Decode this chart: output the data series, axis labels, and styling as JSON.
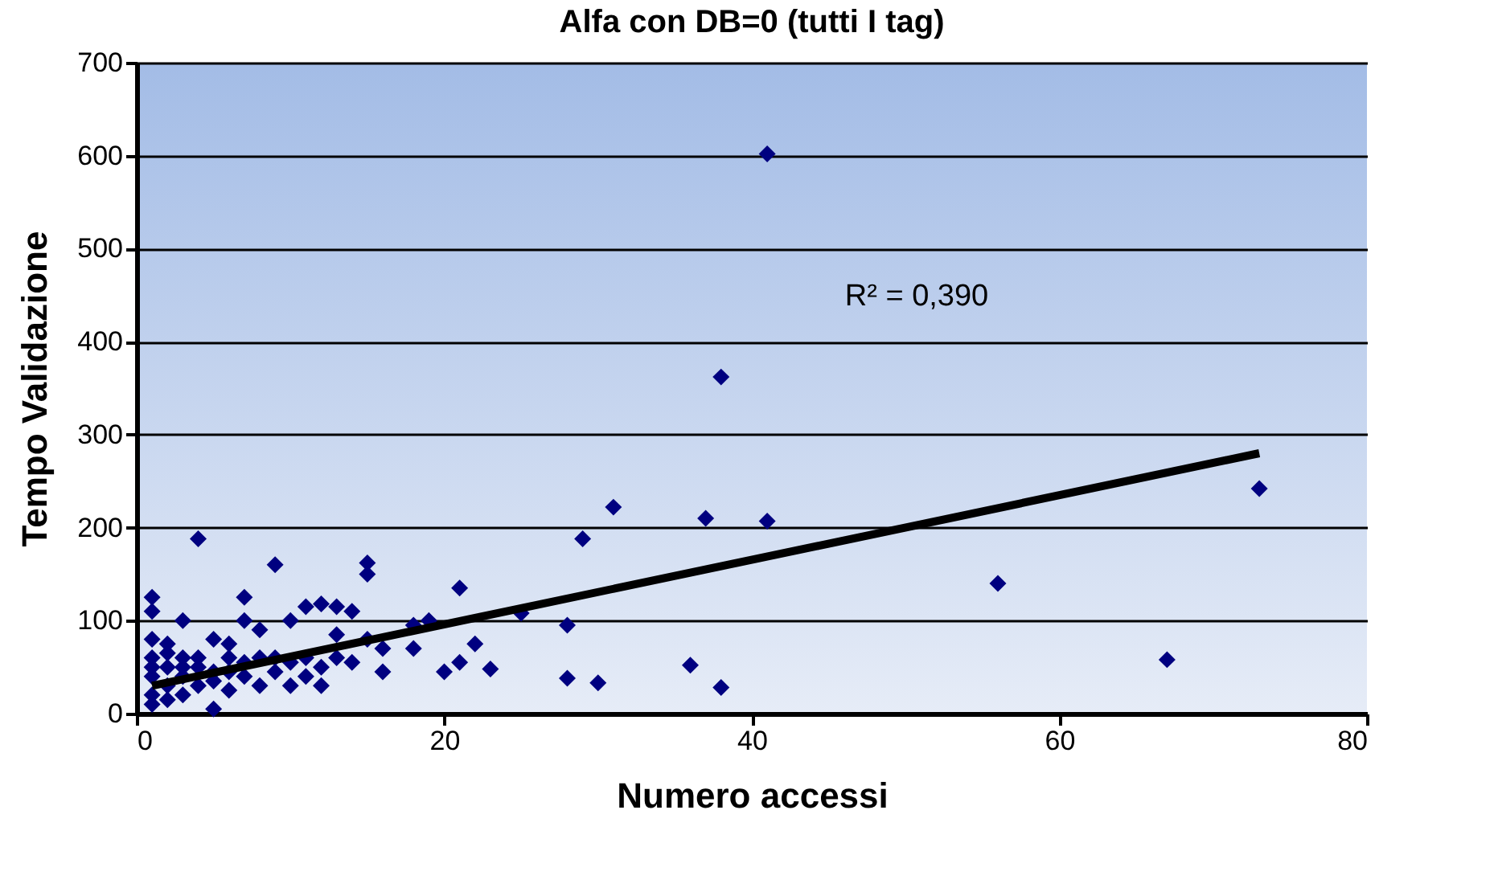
{
  "chart_data": {
    "type": "scatter",
    "title": "Alfa con DB=0 (tutti I tag)",
    "xlabel": "Numero accessi",
    "ylabel": "Tempo Validazione",
    "xlim": [
      0,
      80
    ],
    "xticks": [
      0,
      20,
      40,
      60,
      80
    ],
    "ylim": [
      0,
      700
    ],
    "yticks": [
      0,
      100,
      200,
      300,
      400,
      500,
      600,
      700
    ],
    "grid": "y",
    "marker": "diamond",
    "annotations": [
      "R² = 0,390"
    ],
    "series": [
      {
        "color": "#000080",
        "x": [
          41,
          38,
          31,
          37,
          41,
          29,
          73,
          56,
          67,
          36,
          38,
          30,
          28,
          28,
          25,
          23,
          22,
          21,
          21,
          20,
          19,
          18,
          18,
          16,
          16,
          15,
          15,
          15,
          14,
          13,
          13,
          12,
          11,
          11,
          10,
          10,
          9,
          9,
          8,
          8,
          7,
          7,
          7,
          6,
          5,
          5,
          4,
          4,
          3,
          3,
          2,
          2,
          1,
          1,
          1,
          1,
          1,
          1,
          1,
          2,
          3,
          4,
          6,
          8,
          9,
          10,
          11,
          12,
          13,
          12,
          14,
          2,
          3,
          5,
          6,
          7,
          1,
          2,
          3,
          4,
          5,
          6
        ],
        "values": [
          602,
          362,
          222,
          210,
          207,
          188,
          242,
          140,
          58,
          52,
          28,
          33,
          38,
          95,
          108,
          48,
          75,
          55,
          135,
          45,
          100,
          95,
          70,
          45,
          70,
          150,
          162,
          80,
          110,
          115,
          85,
          118,
          115,
          40,
          100,
          30,
          160,
          60,
          90,
          30,
          125,
          100,
          55,
          75,
          80,
          5,
          188,
          50,
          100,
          60,
          75,
          30,
          125,
          110,
          80,
          60,
          40,
          20,
          10,
          50,
          40,
          30,
          45,
          60,
          45,
          55,
          60,
          50,
          60,
          30,
          55,
          15,
          20,
          35,
          25,
          40,
          50,
          65,
          50,
          60,
          45,
          60
        ]
      },
      {
        "type": "line",
        "color": "#000000",
        "x": [
          1,
          73
        ],
        "values": [
          30,
          280
        ],
        "marker": "none"
      }
    ]
  }
}
